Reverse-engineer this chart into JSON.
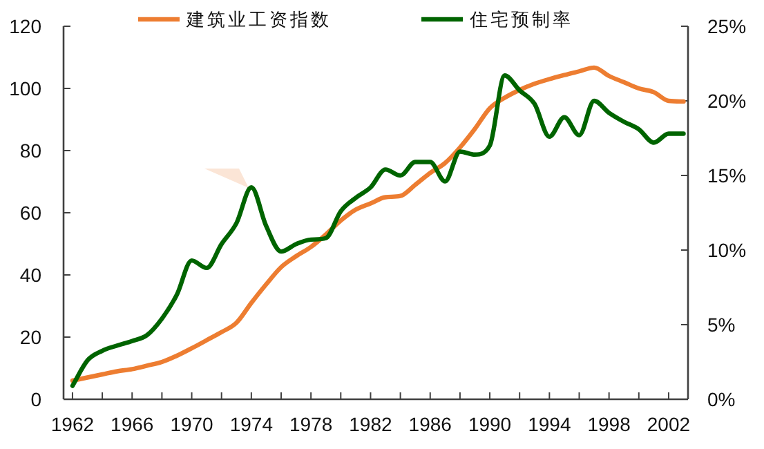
{
  "chart_data": {
    "type": "line",
    "x": [
      1962,
      1963,
      1964,
      1965,
      1966,
      1967,
      1968,
      1969,
      1970,
      1971,
      1972,
      1973,
      1974,
      1975,
      1976,
      1977,
      1978,
      1979,
      1980,
      1981,
      1982,
      1983,
      1984,
      1985,
      1986,
      1987,
      1988,
      1989,
      1990,
      1991,
      1992,
      1993,
      1994,
      1995,
      1996,
      1997,
      1998,
      1999,
      2000,
      2001,
      2002,
      2003
    ],
    "series": [
      {
        "name": "建筑业工资指数",
        "color": "#ed7d31",
        "values": [
          6,
          7,
          8,
          9,
          9.7,
          10.8,
          12,
          14,
          16.4,
          19,
          21.6,
          24.6,
          31,
          37,
          42.5,
          46,
          49,
          53,
          57.5,
          61,
          63,
          65,
          65.4,
          69,
          72.8,
          76,
          81,
          87,
          93.6,
          97,
          99.5,
          101.5,
          103,
          104.3,
          105.5,
          106.7,
          104,
          102,
          100,
          98.8,
          96,
          95.8
        ]
      },
      {
        "name": "住宅预制率",
        "color": "#006400",
        "axis": "y2",
        "values": [
          0.9,
          2.6,
          3.25,
          3.6,
          3.9,
          4.3,
          5.4,
          7.0,
          9.3,
          8.8,
          10.4,
          11.8,
          14.2,
          11.6,
          9.9,
          10.4,
          10.7,
          10.8,
          12.6,
          13.5,
          14.2,
          15.4,
          15.0,
          15.9,
          15.9,
          14.6,
          16.6,
          16.4,
          17.0,
          21.7,
          20.7,
          19.8,
          17.6,
          18.9,
          17.7,
          20.0,
          19.2,
          18.6,
          18.1,
          17.2,
          17.8,
          17.8
        ]
      }
    ],
    "xlim": [
      1961.4,
      2003.3
    ],
    "xticks": [
      1962,
      {
        "value": 1964,
        "label": null
      },
      1966,
      {
        "value": 1968,
        "label": null
      },
      1970,
      {
        "value": 1972,
        "label": null
      },
      1974,
      {
        "value": 1976,
        "label": null
      },
      1978,
      {
        "value": 1980,
        "label": null
      },
      1982,
      {
        "value": 1984,
        "label": null
      },
      1986,
      {
        "value": 1988,
        "label": null
      },
      1990,
      {
        "value": 1992,
        "label": null
      },
      1994,
      {
        "value": 1996,
        "label": null
      },
      1998,
      {
        "value": 2000,
        "label": null
      },
      2002
    ],
    "ylim": [
      0,
      120
    ],
    "yticks": [
      0,
      20,
      40,
      60,
      80,
      100,
      120
    ],
    "y2lim": [
      0,
      25
    ],
    "y2ticks": [
      {
        "value": 0,
        "label": "0%"
      },
      {
        "value": 5,
        "label": "5%"
      },
      {
        "value": 10,
        "label": "10%"
      },
      {
        "value": 15,
        "label": "15%"
      },
      {
        "value": 20,
        "label": "20%"
      },
      {
        "value": 25,
        "label": "25%"
      }
    ],
    "legend": "top",
    "marker": "none",
    "line_style": "solid"
  }
}
